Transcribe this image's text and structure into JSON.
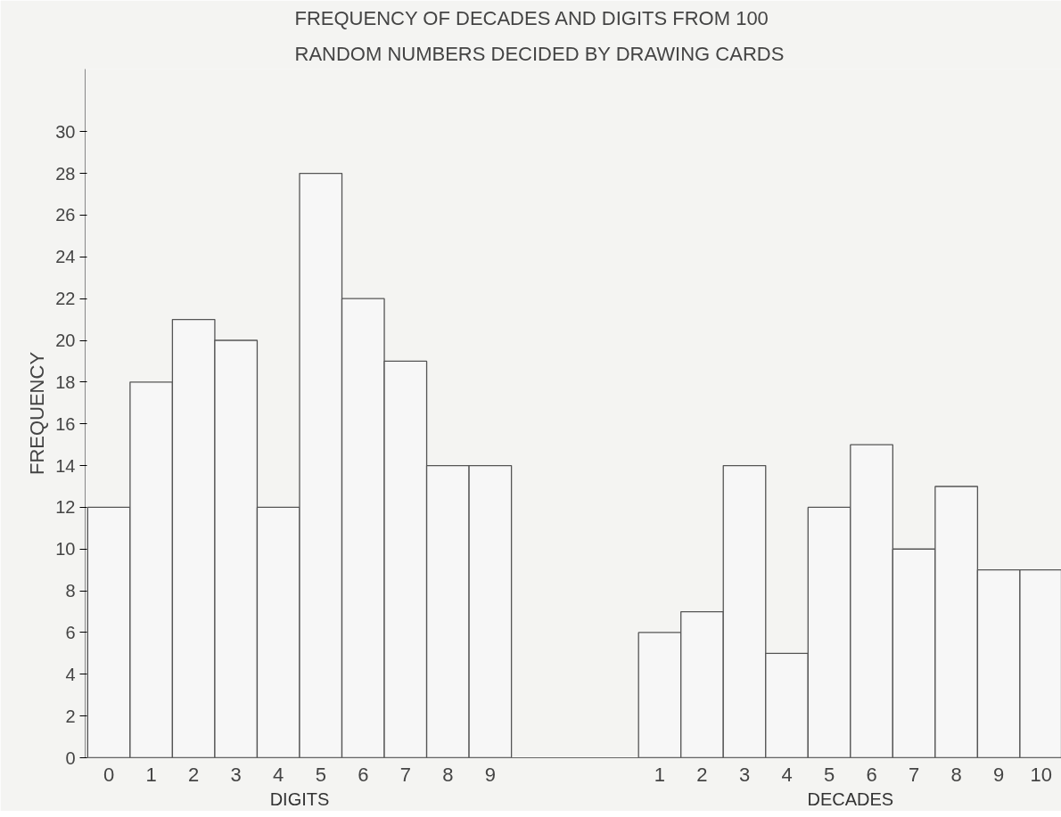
{
  "chart_data": {
    "type": "bar",
    "title": "FREQUENCY OF DECADES AND DIGITS FROM 100 RANDOM NUMBERS DECIDED BY DRAWING CARDS",
    "xlabel": "DIGITS",
    "ylabel": "FREQUENCY",
    "categories": [
      "0",
      "1",
      "2",
      "3",
      "4",
      "5",
      "6",
      "7",
      "8",
      "9",
      null,
      null,
      null,
      "1",
      "2",
      "3",
      "4",
      "5",
      "6",
      "7",
      "8",
      "9",
      "10"
    ],
    "values": [
      12,
      18,
      21,
      20,
      12,
      28,
      22,
      19,
      14,
      14,
      null,
      null,
      null,
      6,
      7,
      14,
      5,
      12,
      15,
      10,
      13,
      9,
      9
    ],
    "color": "#f7f7f7",
    "annotations": [
      "DECADES"
    ],
    "ylim": [
      0,
      33
    ],
    "yticks": [
      0,
      2,
      4,
      6,
      8,
      10,
      12,
      14,
      16,
      18,
      20,
      22,
      24,
      26,
      28,
      30
    ],
    "grid": false
  }
}
